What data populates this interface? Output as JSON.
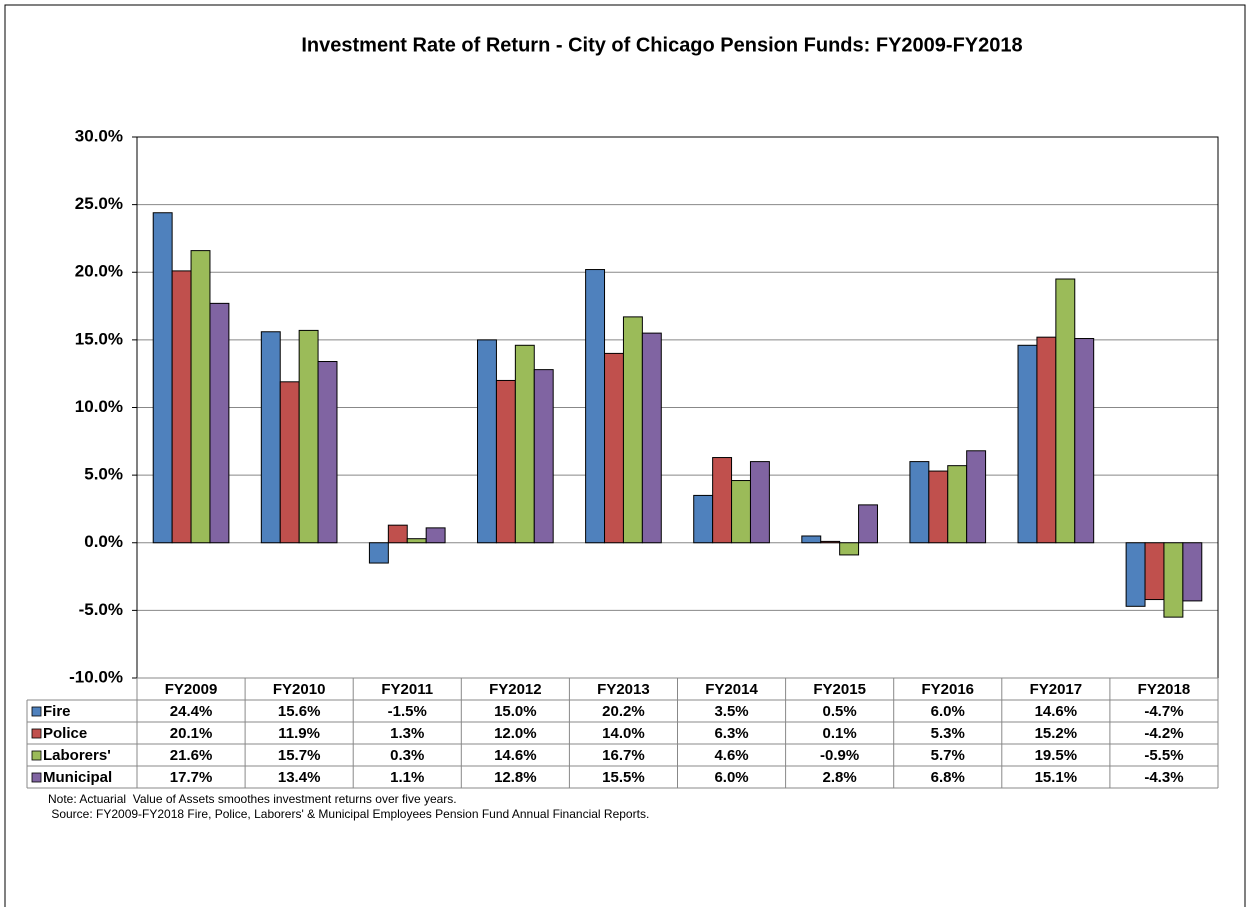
{
  "chart_data": {
    "type": "bar",
    "title": "Investment Rate of Return - City of Chicago Pension Funds: FY2009-FY2018",
    "categories": [
      "FY2009",
      "FY2010",
      "FY2011",
      "FY2012",
      "FY2013",
      "FY2014",
      "FY2015",
      "FY2016",
      "FY2017",
      "FY2018"
    ],
    "series": [
      {
        "name": "Fire",
        "color": "#4f81bd",
        "values": [
          24.4,
          15.6,
          -1.5,
          15.0,
          20.2,
          3.5,
          0.5,
          6.0,
          14.6,
          -4.7
        ],
        "value_labels": [
          "24.4%",
          "15.6%",
          "-1.5%",
          "15.0%",
          "20.2%",
          "3.5%",
          "0.5%",
          "6.0%",
          "14.6%",
          "-4.7%"
        ]
      },
      {
        "name": "Police",
        "color": "#c0504d",
        "values": [
          20.1,
          11.9,
          1.3,
          12.0,
          14.0,
          6.3,
          0.1,
          5.3,
          15.2,
          -4.2
        ],
        "value_labels": [
          "20.1%",
          "11.9%",
          "1.3%",
          "12.0%",
          "14.0%",
          "6.3%",
          "0.1%",
          "5.3%",
          "15.2%",
          "-4.2%"
        ]
      },
      {
        "name": "Laborers'",
        "color": "#9bbb59",
        "values": [
          21.6,
          15.7,
          0.3,
          14.6,
          16.7,
          4.6,
          -0.9,
          5.7,
          19.5,
          -5.5
        ],
        "value_labels": [
          "21.6%",
          "15.7%",
          "0.3%",
          "14.6%",
          "16.7%",
          "4.6%",
          "-0.9%",
          "5.7%",
          "19.5%",
          "-5.5%"
        ]
      },
      {
        "name": "Municipal",
        "color": "#8064a2",
        "values": [
          17.7,
          13.4,
          1.1,
          12.8,
          15.5,
          6.0,
          2.8,
          6.8,
          15.1,
          -4.3
        ],
        "value_labels": [
          "17.7%",
          "13.4%",
          "1.1%",
          "12.8%",
          "15.5%",
          "6.0%",
          "2.8%",
          "6.8%",
          "15.1%",
          "-4.3%"
        ]
      }
    ],
    "ylim": [
      -10,
      30
    ],
    "yticks": [
      {
        "value": -10,
        "label": "-10.0%"
      },
      {
        "value": -5,
        "label": "-5.0%"
      },
      {
        "value": 0,
        "label": "0.0%"
      },
      {
        "value": 5,
        "label": "5.0%"
      },
      {
        "value": 10,
        "label": "10.0%"
      },
      {
        "value": 15,
        "label": "15.0%"
      },
      {
        "value": 20,
        "label": "20.0%"
      },
      {
        "value": 25,
        "label": "25.0%"
      },
      {
        "value": 30,
        "label": "30.0%"
      }
    ],
    "grid": true,
    "notes": [
      "Note: Actuarial  Value of Assets smoothes investment returns over five years.",
      " Source: FY2009-FY2018 Fire, Police, Laborers' & Municipal Employees Pension Fund Annual Financial Reports."
    ]
  }
}
